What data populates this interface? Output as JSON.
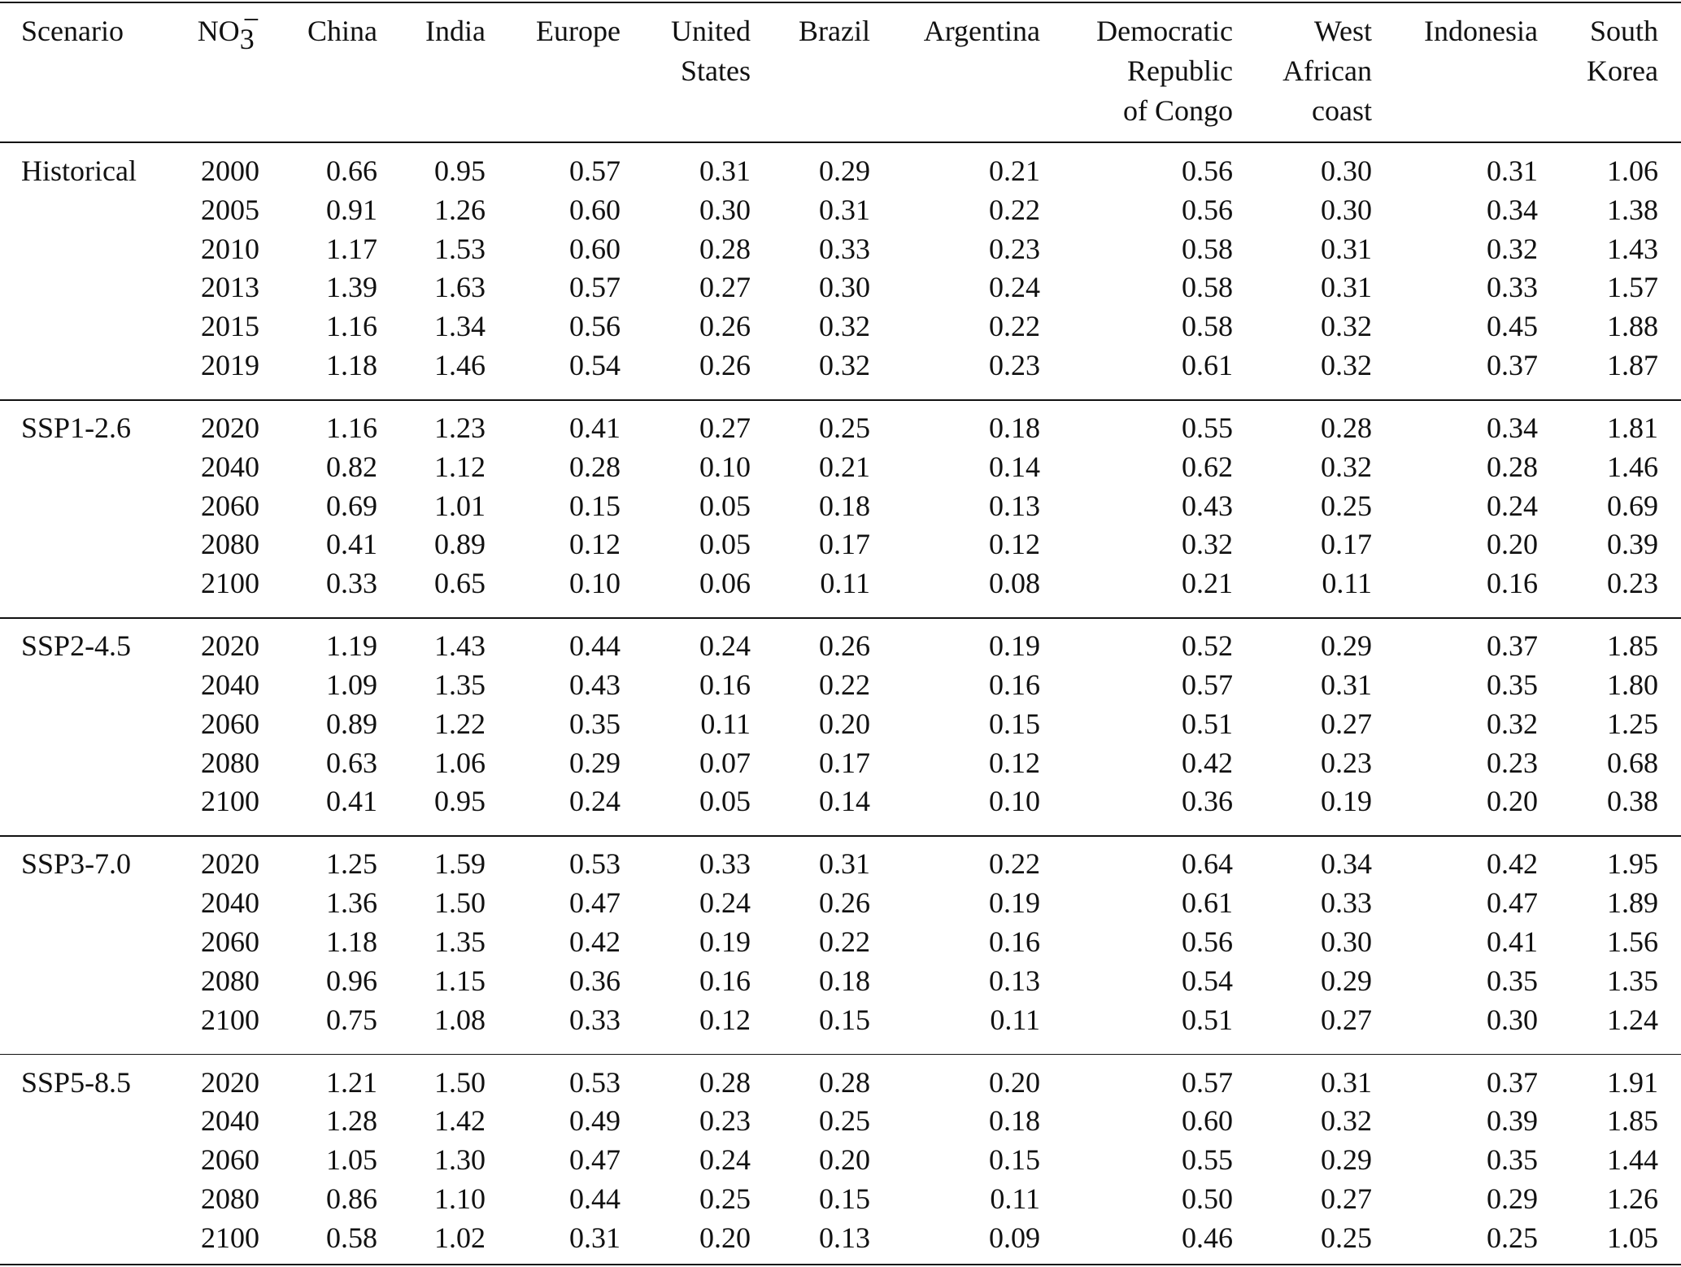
{
  "table": {
    "header": [
      [
        "Scenario"
      ],
      {
        "base": "NO",
        "sub": "3",
        "sup": "−"
      },
      [
        "China"
      ],
      [
        "India"
      ],
      [
        "Europe"
      ],
      [
        "United",
        "States"
      ],
      [
        "Brazil"
      ],
      [
        "Argentina"
      ],
      [
        "Democratic",
        "Republic",
        "of Congo"
      ],
      [
        "West",
        "African",
        "coast"
      ],
      [
        "Indonesia"
      ],
      [
        "South",
        "Korea"
      ]
    ],
    "groups": [
      {
        "scenario": "Historical",
        "rows": [
          {
            "year": "2000",
            "values": [
              "0.66",
              "0.95",
              "0.57",
              "0.31",
              "0.29",
              "0.21",
              "0.56",
              "0.30",
              "0.31",
              "1.06"
            ]
          },
          {
            "year": "2005",
            "values": [
              "0.91",
              "1.26",
              "0.60",
              "0.30",
              "0.31",
              "0.22",
              "0.56",
              "0.30",
              "0.34",
              "1.38"
            ]
          },
          {
            "year": "2010",
            "values": [
              "1.17",
              "1.53",
              "0.60",
              "0.28",
              "0.33",
              "0.23",
              "0.58",
              "0.31",
              "0.32",
              "1.43"
            ]
          },
          {
            "year": "2013",
            "values": [
              "1.39",
              "1.63",
              "0.57",
              "0.27",
              "0.30",
              "0.24",
              "0.58",
              "0.31",
              "0.33",
              "1.57"
            ]
          },
          {
            "year": "2015",
            "values": [
              "1.16",
              "1.34",
              "0.56",
              "0.26",
              "0.32",
              "0.22",
              "0.58",
              "0.32",
              "0.45",
              "1.88"
            ]
          },
          {
            "year": "2019",
            "values": [
              "1.18",
              "1.46",
              "0.54",
              "0.26",
              "0.32",
              "0.23",
              "0.61",
              "0.32",
              "0.37",
              "1.87"
            ]
          }
        ]
      },
      {
        "scenario": "SSP1-2.6",
        "rows": [
          {
            "year": "2020",
            "values": [
              "1.16",
              "1.23",
              "0.41",
              "0.27",
              "0.25",
              "0.18",
              "0.55",
              "0.28",
              "0.34",
              "1.81"
            ]
          },
          {
            "year": "2040",
            "values": [
              "0.82",
              "1.12",
              "0.28",
              "0.10",
              "0.21",
              "0.14",
              "0.62",
              "0.32",
              "0.28",
              "1.46"
            ]
          },
          {
            "year": "2060",
            "values": [
              "0.69",
              "1.01",
              "0.15",
              "0.05",
              "0.18",
              "0.13",
              "0.43",
              "0.25",
              "0.24",
              "0.69"
            ]
          },
          {
            "year": "2080",
            "values": [
              "0.41",
              "0.89",
              "0.12",
              "0.05",
              "0.17",
              "0.12",
              "0.32",
              "0.17",
              "0.20",
              "0.39"
            ]
          },
          {
            "year": "2100",
            "values": [
              "0.33",
              "0.65",
              "0.10",
              "0.06",
              "0.11",
              "0.08",
              "0.21",
              "0.11",
              "0.16",
              "0.23"
            ]
          }
        ]
      },
      {
        "scenario": "SSP2-4.5",
        "rows": [
          {
            "year": "2020",
            "values": [
              "1.19",
              "1.43",
              "0.44",
              "0.24",
              "0.26",
              "0.19",
              "0.52",
              "0.29",
              "0.37",
              "1.85"
            ]
          },
          {
            "year": "2040",
            "values": [
              "1.09",
              "1.35",
              "0.43",
              "0.16",
              "0.22",
              "0.16",
              "0.57",
              "0.31",
              "0.35",
              "1.80"
            ]
          },
          {
            "year": "2060",
            "values": [
              "0.89",
              "1.22",
              "0.35",
              "0.11",
              "0.20",
              "0.15",
              "0.51",
              "0.27",
              "0.32",
              "1.25"
            ]
          },
          {
            "year": "2080",
            "values": [
              "0.63",
              "1.06",
              "0.29",
              "0.07",
              "0.17",
              "0.12",
              "0.42",
              "0.23",
              "0.23",
              "0.68"
            ]
          },
          {
            "year": "2100",
            "values": [
              "0.41",
              "0.95",
              "0.24",
              "0.05",
              "0.14",
              "0.10",
              "0.36",
              "0.19",
              "0.20",
              "0.38"
            ]
          }
        ]
      },
      {
        "scenario": "SSP3-7.0",
        "rows": [
          {
            "year": "2020",
            "values": [
              "1.25",
              "1.59",
              "0.53",
              "0.33",
              "0.31",
              "0.22",
              "0.64",
              "0.34",
              "0.42",
              "1.95"
            ]
          },
          {
            "year": "2040",
            "values": [
              "1.36",
              "1.50",
              "0.47",
              "0.24",
              "0.26",
              "0.19",
              "0.61",
              "0.33",
              "0.47",
              "1.89"
            ]
          },
          {
            "year": "2060",
            "values": [
              "1.18",
              "1.35",
              "0.42",
              "0.19",
              "0.22",
              "0.16",
              "0.56",
              "0.30",
              "0.41",
              "1.56"
            ]
          },
          {
            "year": "2080",
            "values": [
              "0.96",
              "1.15",
              "0.36",
              "0.16",
              "0.18",
              "0.13",
              "0.54",
              "0.29",
              "0.35",
              "1.35"
            ]
          },
          {
            "year": "2100",
            "values": [
              "0.75",
              "1.08",
              "0.33",
              "0.12",
              "0.15",
              "0.11",
              "0.51",
              "0.27",
              "0.30",
              "1.24"
            ]
          }
        ]
      },
      {
        "scenario": "SSP5-8.5",
        "rows": [
          {
            "year": "2020",
            "values": [
              "1.21",
              "1.50",
              "0.53",
              "0.28",
              "0.28",
              "0.20",
              "0.57",
              "0.31",
              "0.37",
              "1.91"
            ]
          },
          {
            "year": "2040",
            "values": [
              "1.28",
              "1.42",
              "0.49",
              "0.23",
              "0.25",
              "0.18",
              "0.60",
              "0.32",
              "0.39",
              "1.85"
            ]
          },
          {
            "year": "2060",
            "values": [
              "1.05",
              "1.30",
              "0.47",
              "0.24",
              "0.20",
              "0.15",
              "0.55",
              "0.29",
              "0.35",
              "1.44"
            ]
          },
          {
            "year": "2080",
            "values": [
              "0.86",
              "1.10",
              "0.44",
              "0.25",
              "0.15",
              "0.11",
              "0.50",
              "0.27",
              "0.29",
              "1.26"
            ]
          },
          {
            "year": "2100",
            "values": [
              "0.58",
              "1.02",
              "0.31",
              "0.20",
              "0.13",
              "0.09",
              "0.46",
              "0.25",
              "0.25",
              "1.05"
            ]
          }
        ]
      }
    ]
  }
}
